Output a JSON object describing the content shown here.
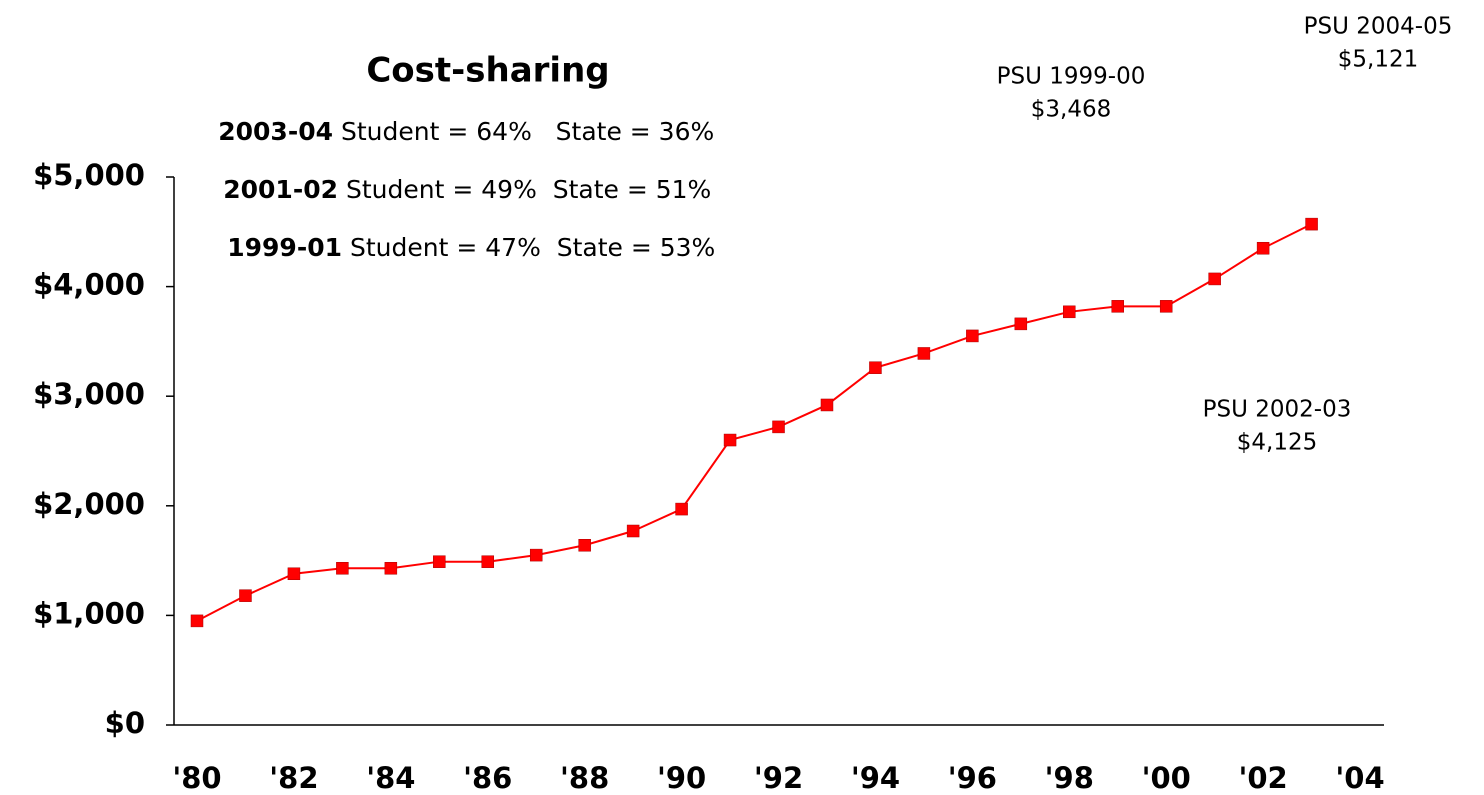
{
  "chart_data": {
    "type": "line",
    "title": "Cost-sharing",
    "notes": [
      {
        "year": "2003-04",
        "text": "Student = 64%   State = 36%"
      },
      {
        "year": "2001-02",
        "text": "Student = 49%  State = 51%"
      },
      {
        "year": "1999-01",
        "text": "Student = 47%  State = 53%"
      }
    ],
    "annotations": [
      [
        "PSU 1999-00",
        "$3,468"
      ],
      [
        "PSU 2004-05",
        "$5,121"
      ],
      [
        "PSU 2002-03",
        "$4,125"
      ]
    ],
    "categories": [
      "'80",
      null,
      "'82",
      null,
      "'84",
      null,
      "'86",
      null,
      "'88",
      null,
      "'90",
      null,
      "'92",
      null,
      "'94",
      null,
      "'96",
      null,
      "'98",
      null,
      "'00",
      null,
      "'02",
      null,
      "'04"
    ],
    "series": [
      {
        "color": "#ff0000",
        "values": [
          950,
          1180,
          1380,
          1430,
          1430,
          1490,
          1490,
          1550,
          1640,
          1770,
          1970,
          2600,
          2720,
          2920,
          3260,
          3390,
          3550,
          3660,
          3770,
          3820,
          3820,
          4070,
          4350,
          4570,
          null
        ]
      }
    ],
    "ylim": [
      0,
      5000
    ],
    "yticks": [
      {
        "value": 0,
        "label": "$0"
      },
      {
        "value": 1000,
        "label": "$1,000"
      },
      {
        "value": 2000,
        "label": "$2,000"
      },
      {
        "value": 3000,
        "label": "$3,000"
      },
      {
        "value": 4000,
        "label": "$4,000"
      },
      {
        "value": 5000,
        "label": "$5,000"
      }
    ],
    "grid": false
  }
}
